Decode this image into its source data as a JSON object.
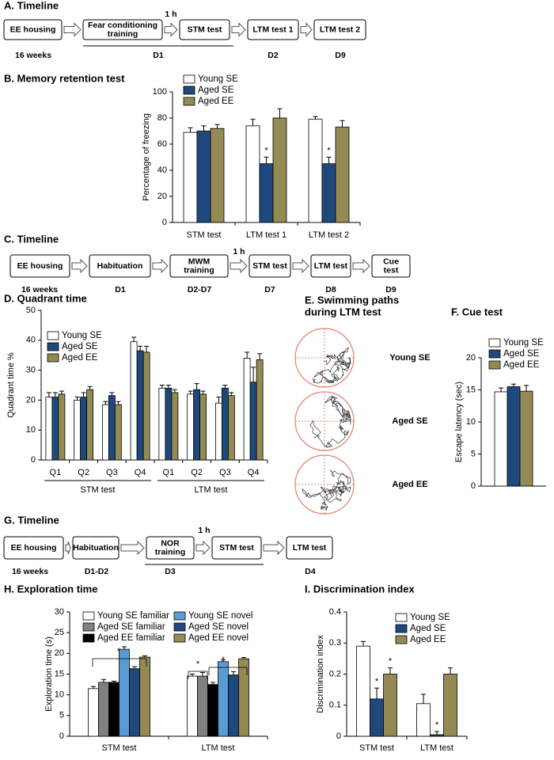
{
  "timelines": [
    {
      "title": "A. Timeline",
      "boxes": [
        "EE housing",
        "Fear conditioning training",
        "STM test",
        "LTM test 1",
        "LTM test 2"
      ],
      "labels": [
        "16 weeks",
        "D1",
        "D2",
        "D9"
      ],
      "delay": "1 h"
    },
    {
      "title": "C. Timeline",
      "boxes": [
        "EE housing",
        "Habituation",
        "MWM training",
        "STM test",
        "LTM test",
        "Cue test"
      ],
      "labels": [
        "16 weeks",
        "D1",
        "D2-D7",
        "D7",
        "D8",
        "D9"
      ],
      "delay": "1 h"
    },
    {
      "title": "G. Timeline",
      "boxes": [
        "EE housing",
        "Habituation",
        "NOR training",
        "STM test",
        "LTM test"
      ],
      "labels": [
        "16 weeks",
        "D1-D2",
        "D3",
        "D4"
      ],
      "delay": "1 h"
    }
  ],
  "swim_paths": {
    "title_lines": [
      "E. Swimming paths",
      "during LTM test"
    ],
    "groups": [
      "Young SE",
      "Aged SE",
      "Aged EE"
    ]
  },
  "chart_data": [
    {
      "type": "bar",
      "title": "B. Memory retention test",
      "y_label": "Percentage of freezing",
      "legend": "top-left",
      "categories": [
        "STM test",
        "LTM test 1",
        "LTM test 2"
      ],
      "ylim": [
        0,
        100
      ],
      "yticks": [
        0,
        20,
        40,
        60,
        80,
        100
      ],
      "series": [
        {
          "name": "Young SE",
          "color": "#ffffff",
          "values": [
            69,
            74,
            79
          ],
          "errors": [
            3.5,
            5,
            2
          ]
        },
        {
          "name": "Aged SE",
          "color": "#1f497d",
          "values": [
            70,
            45,
            45
          ],
          "errors": [
            4,
            5,
            5
          ],
          "significance": [
            null,
            "*",
            "*"
          ]
        },
        {
          "name": "Aged EE",
          "color": "#948a54",
          "values": [
            72,
            80,
            73
          ],
          "errors": [
            3,
            7,
            5
          ]
        }
      ]
    },
    {
      "type": "bar",
      "title": "D. Quadrant time",
      "y_label": "Quadrant time %",
      "legend": "top-left",
      "categories": [
        "Q1",
        "Q2",
        "Q3",
        "Q4",
        "Q1",
        "Q2",
        "Q3",
        "Q4"
      ],
      "groups": [
        "STM test",
        "LTM test"
      ],
      "ylim": [
        0,
        50
      ],
      "yticks": [
        0,
        10,
        20,
        30,
        40,
        50
      ],
      "series": [
        {
          "name": "Young SE",
          "color": "#ffffff",
          "values": [
            21,
            20,
            18.5,
            39.5,
            24,
            22,
            19,
            34
          ],
          "errors": [
            1.5,
            1,
            1,
            1.5,
            1,
            1,
            2,
            2
          ]
        },
        {
          "name": "Aged SE",
          "color": "#1f497d",
          "values": [
            21,
            21,
            21.5,
            36.5,
            24,
            23.5,
            24,
            26
          ],
          "errors": [
            1.5,
            1.5,
            1,
            1.5,
            1,
            2,
            1,
            5
          ]
        },
        {
          "name": "Aged EE",
          "color": "#948a54",
          "values": [
            22,
            23.5,
            18.5,
            36,
            22.5,
            22,
            21.5,
            33.5
          ],
          "errors": [
            1,
            1,
            1,
            2,
            1,
            1,
            1,
            2
          ]
        }
      ]
    },
    {
      "type": "bar",
      "title": "F. Cue test",
      "y_label": "Escape latency (sec)",
      "legend": "top-right",
      "ylim": [
        0,
        20
      ],
      "yticks": [
        0,
        5,
        10,
        15,
        20
      ],
      "series": [
        {
          "name": "Young SE",
          "color": "#ffffff",
          "values": [
            14.7
          ],
          "errors": [
            0.6
          ]
        },
        {
          "name": "Aged SE",
          "color": "#1f497d",
          "values": [
            15.5
          ],
          "errors": [
            0.4
          ]
        },
        {
          "name": "Aged EE",
          "color": "#948a54",
          "values": [
            14.8
          ],
          "errors": [
            0.9
          ]
        }
      ]
    },
    {
      "type": "bar",
      "title": "H. Exploration time",
      "y_label": "Exploration time (s)",
      "legend": "top",
      "categories": [
        "STM test",
        "LTM test"
      ],
      "ylim": [
        0,
        30
      ],
      "yticks": [
        0,
        5,
        10,
        15,
        20,
        25,
        30
      ],
      "annotations": [
        "*",
        "*",
        "*"
      ],
      "series": [
        {
          "name": "Young SE familiar",
          "color": "#ffffff",
          "values": [
            11.5,
            14.5
          ],
          "errors": [
            0.5,
            0.5
          ]
        },
        {
          "name": "Aged SE familiar",
          "color": "#808080",
          "values": [
            13,
            14.5
          ],
          "errors": [
            0.7,
            0.9
          ]
        },
        {
          "name": "Aged EE familiar",
          "color": "#000000",
          "values": [
            13,
            12.5
          ],
          "errors": [
            0.3,
            0.5
          ]
        },
        {
          "name": "Young SE novel",
          "color": "#5b9bd5",
          "values": [
            21,
            18
          ],
          "errors": [
            0.6,
            0.4
          ]
        },
        {
          "name": "Aged SE novel",
          "color": "#1f497d",
          "values": [
            16.3,
            14.8
          ],
          "errors": [
            0.5,
            0.8
          ]
        },
        {
          "name": "Aged EE novel",
          "color": "#948a54",
          "values": [
            19.1,
            18.7
          ],
          "errors": [
            0.3,
            0.3
          ]
        }
      ]
    },
    {
      "type": "bar",
      "title": "I. Discrimination index",
      "y_label": "Discrimination index",
      "legend": "top-right",
      "categories": [
        "STM test",
        "LTM test"
      ],
      "ylim": [
        0,
        0.4
      ],
      "yticks": [
        0,
        0.1,
        0.2,
        0.3,
        0.4
      ],
      "series": [
        {
          "name": "Young SE",
          "color": "#ffffff",
          "values": [
            0.29,
            0.105
          ],
          "errors": [
            0.015,
            0.03
          ]
        },
        {
          "name": "Aged SE",
          "color": "#1f497d",
          "values": [
            0.12,
            0.005
          ],
          "errors": [
            0.035,
            0.01
          ],
          "significance": [
            "*",
            "*"
          ]
        },
        {
          "name": "Aged EE",
          "color": "#948a54",
          "values": [
            0.2,
            0.2
          ],
          "errors": [
            0.02,
            0.02
          ],
          "significance": [
            "*",
            null
          ]
        }
      ]
    }
  ]
}
